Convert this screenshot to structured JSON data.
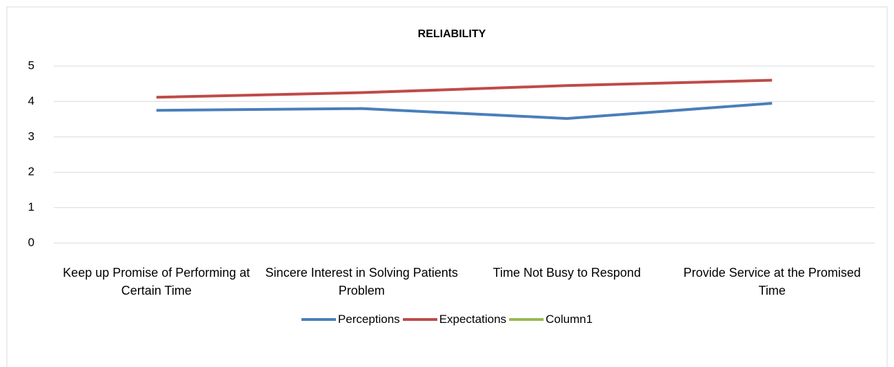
{
  "chart_data": {
    "type": "line",
    "title": "RELIABILITY",
    "categories": [
      "Keep up Promise of Performing at Certain Time",
      "Sincere Interest in Solving Patients Problem",
      "Time Not Busy to Respond",
      "Provide Service at the Promised Time"
    ],
    "series": [
      {
        "name": "Perceptions",
        "color": "#4a7ebb",
        "values": [
          3.75,
          3.8,
          3.52,
          3.95
        ]
      },
      {
        "name": "Expectations",
        "color": "#be4b48",
        "values": [
          4.12,
          4.25,
          4.45,
          4.6
        ]
      },
      {
        "name": "Column1",
        "color": "#98b954",
        "values": [
          null,
          null,
          null,
          null
        ]
      }
    ],
    "ylim": [
      0,
      5
    ],
    "yticks": [
      0,
      1,
      2,
      3,
      4,
      5
    ],
    "grid": true,
    "legend": "bottom"
  }
}
